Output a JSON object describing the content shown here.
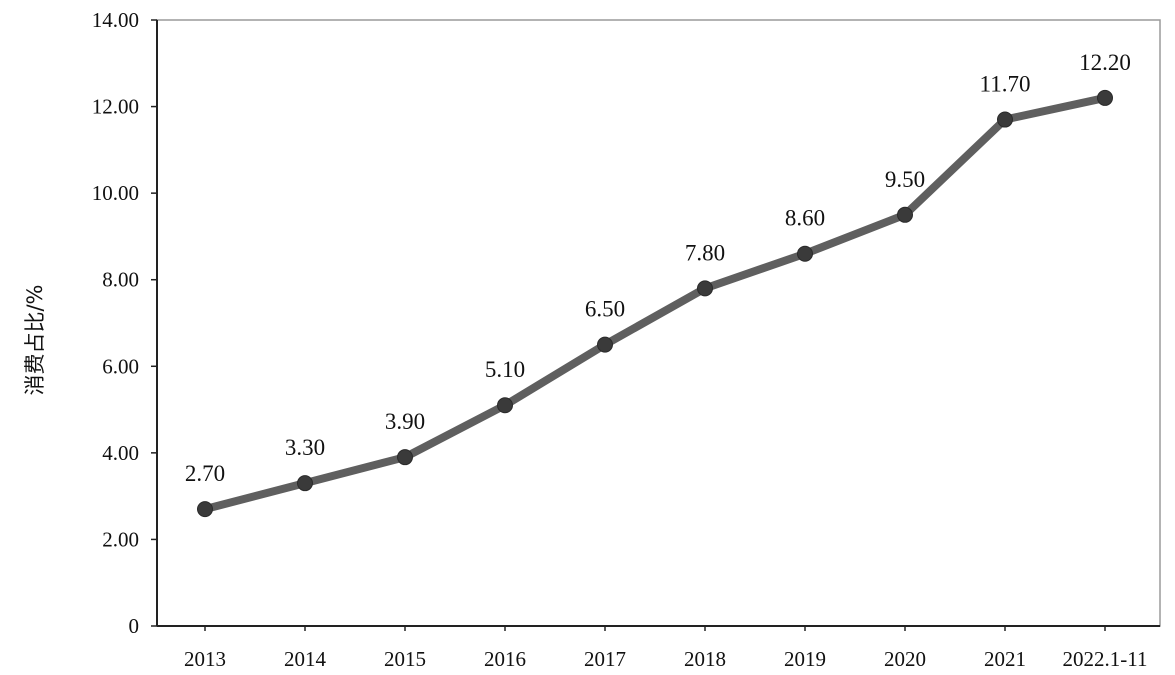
{
  "chart_data": {
    "type": "line",
    "title": "",
    "xlabel": "",
    "ylabel": "消费占比/%",
    "categories": [
      "2013",
      "2014",
      "2015",
      "2016",
      "2017",
      "2018",
      "2019",
      "2020",
      "2021",
      "2022.1-11"
    ],
    "series": [
      {
        "values": [
          2.7,
          3.3,
          3.9,
          5.1,
          6.5,
          7.8,
          8.6,
          9.5,
          11.7,
          12.2
        ]
      }
    ],
    "data_labels": [
      "2.70",
      "3.30",
      "3.90",
      "5.10",
      "6.50",
      "7.80",
      "8.60",
      "9.50",
      "11.70",
      "12.20"
    ],
    "ylim": [
      0,
      14
    ],
    "y_ticks": [
      0,
      2,
      4,
      6,
      8,
      10,
      12,
      14
    ],
    "y_tick_labels": [
      "0",
      "2.00",
      "4.00",
      "6.00",
      "8.00",
      "10.00",
      "12.00",
      "14.00"
    ],
    "grid": false,
    "legend": "none",
    "colors": {
      "line": "#5f5f5f",
      "marker": "#3a3a3a",
      "axis": "#222222",
      "frame": "#9a9a9a"
    }
  }
}
